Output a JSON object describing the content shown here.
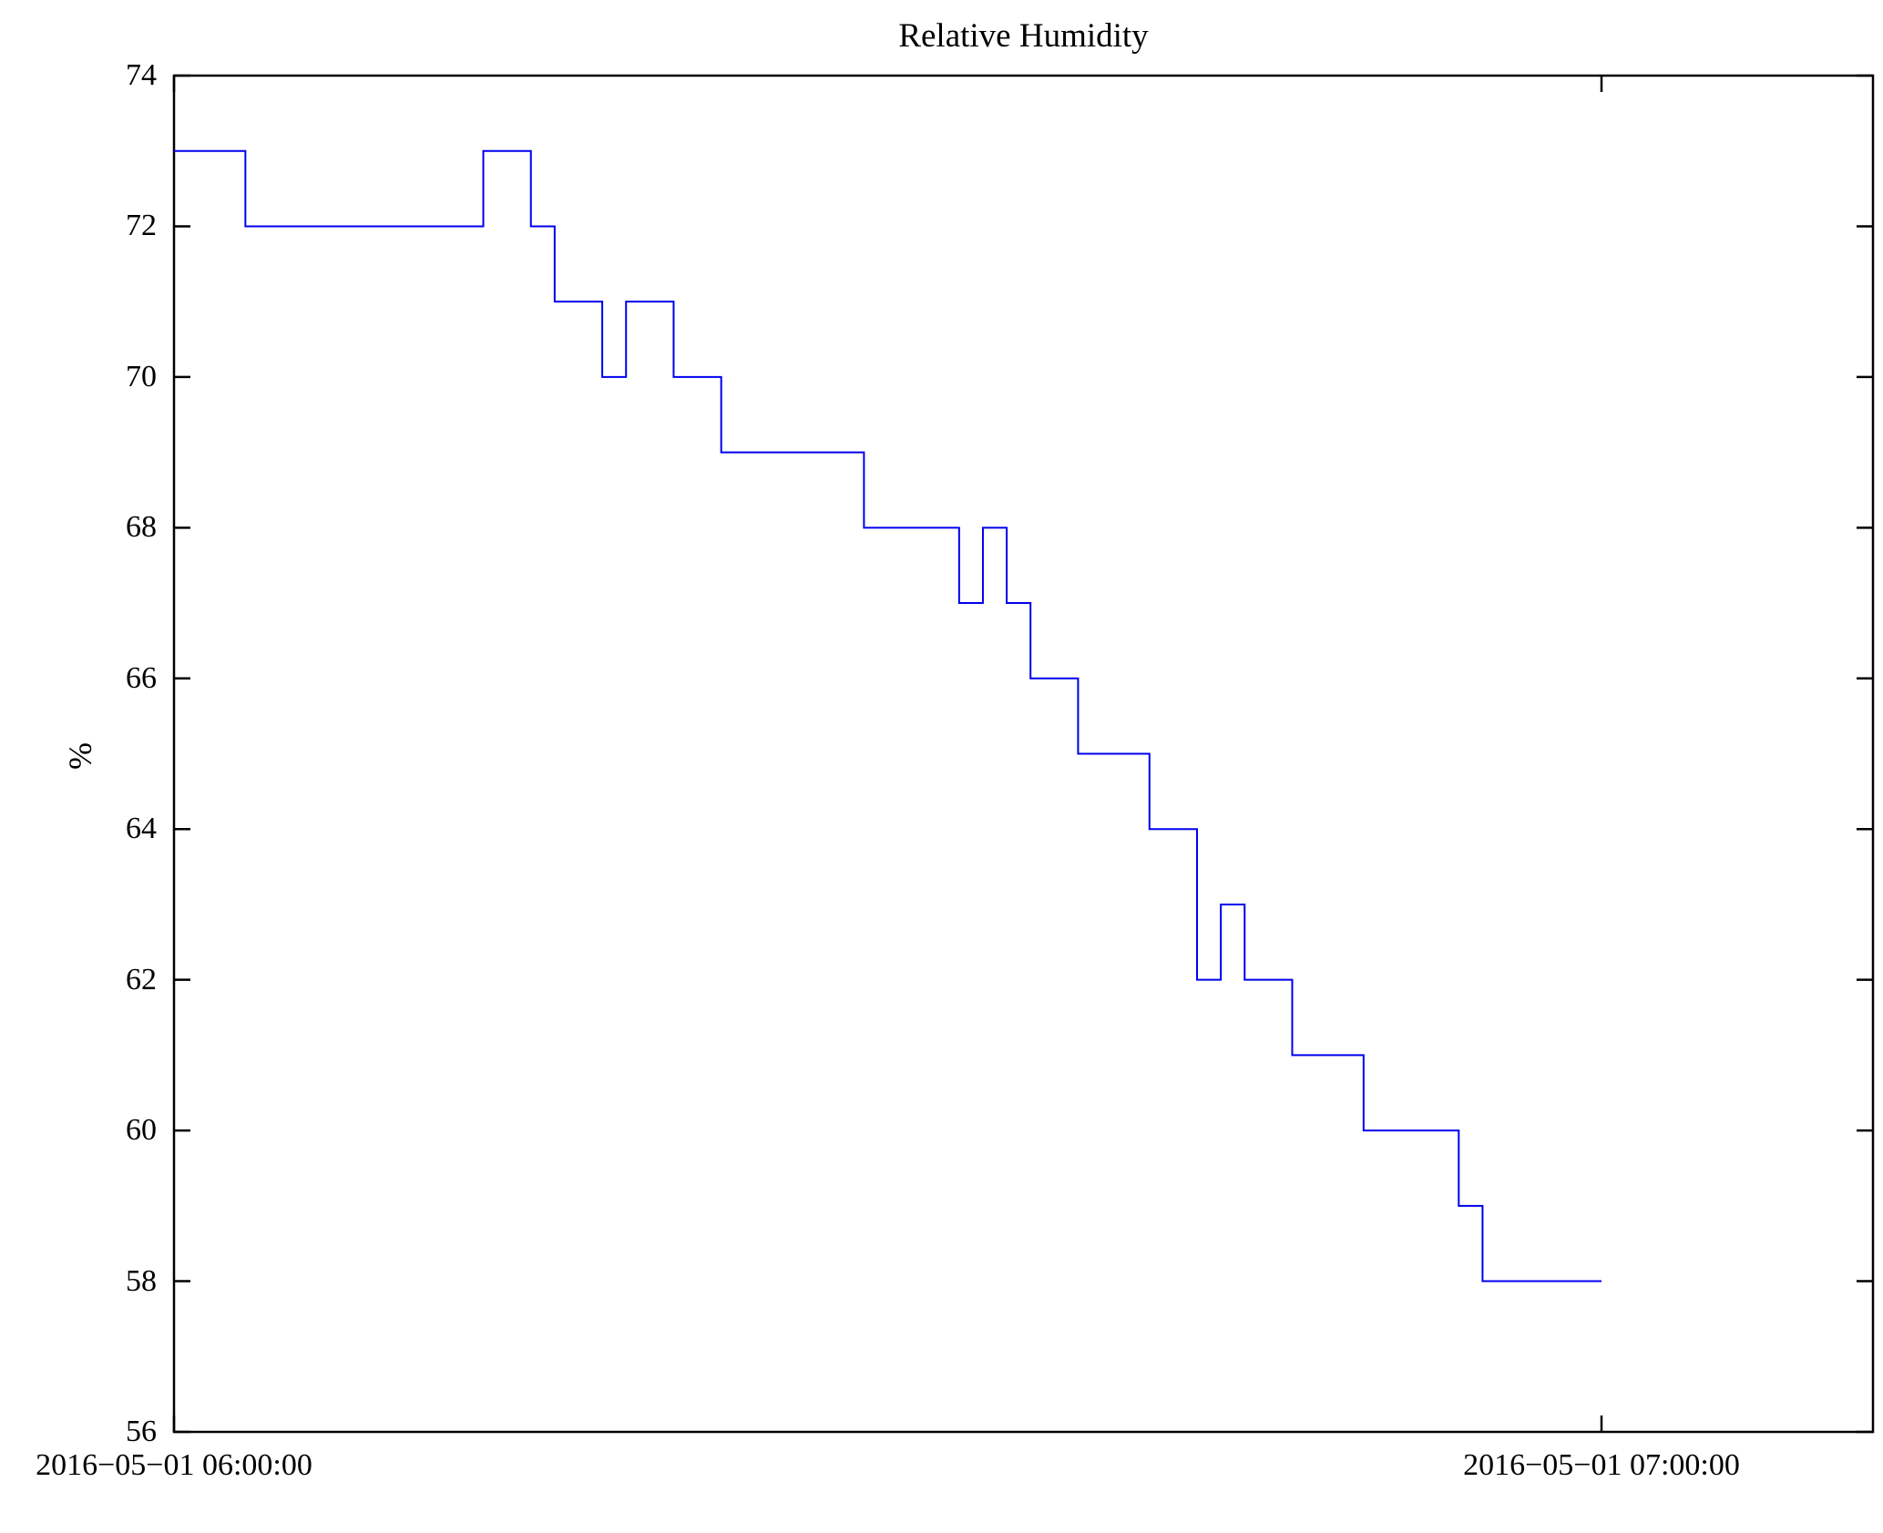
{
  "title": "Relative Humidity",
  "chart_data": {
    "type": "line",
    "style": "step",
    "title": "Relative Humidity",
    "xlabel": "",
    "ylabel": "%",
    "ylim": [
      56,
      74
    ],
    "y_ticks": [
      56,
      58,
      60,
      62,
      64,
      66,
      68,
      70,
      72,
      74
    ],
    "x_tick_minutes": [
      0,
      60
    ],
    "x_tick_labels": [
      "2016−05−01 06:00:00",
      "2016−05−01 07:00:00"
    ],
    "legend": "none",
    "grid": "off",
    "line_color": "#0000ee",
    "axis_color": "#000000",
    "background_color": "#ffffff",
    "series_name": "Relative Humidity",
    "units": "%",
    "steps": [
      {
        "start_min": 0,
        "end_min": 3,
        "value": 73
      },
      {
        "start_min": 3,
        "end_min": 13,
        "value": 72
      },
      {
        "start_min": 13,
        "end_min": 15,
        "value": 73
      },
      {
        "start_min": 15,
        "end_min": 16,
        "value": 72
      },
      {
        "start_min": 16,
        "end_min": 18,
        "value": 71
      },
      {
        "start_min": 18,
        "end_min": 19,
        "value": 70
      },
      {
        "start_min": 19,
        "end_min": 21,
        "value": 71
      },
      {
        "start_min": 21,
        "end_min": 23,
        "value": 70
      },
      {
        "start_min": 23,
        "end_min": 29,
        "value": 69
      },
      {
        "start_min": 29,
        "end_min": 33,
        "value": 68
      },
      {
        "start_min": 33,
        "end_min": 34,
        "value": 67
      },
      {
        "start_min": 34,
        "end_min": 35,
        "value": 68
      },
      {
        "start_min": 35,
        "end_min": 36,
        "value": 67
      },
      {
        "start_min": 36,
        "end_min": 38,
        "value": 66
      },
      {
        "start_min": 38,
        "end_min": 41,
        "value": 65
      },
      {
        "start_min": 41,
        "end_min": 43,
        "value": 64
      },
      {
        "start_min": 43,
        "end_min": 44,
        "value": 62
      },
      {
        "start_min": 44,
        "end_min": 45,
        "value": 63
      },
      {
        "start_min": 45,
        "end_min": 47,
        "value": 62
      },
      {
        "start_min": 47,
        "end_min": 50,
        "value": 61
      },
      {
        "start_min": 50,
        "end_min": 54,
        "value": 60
      },
      {
        "start_min": 54,
        "end_min": 55,
        "value": 59
      },
      {
        "start_min": 55,
        "end_min": 60,
        "value": 58
      }
    ]
  }
}
